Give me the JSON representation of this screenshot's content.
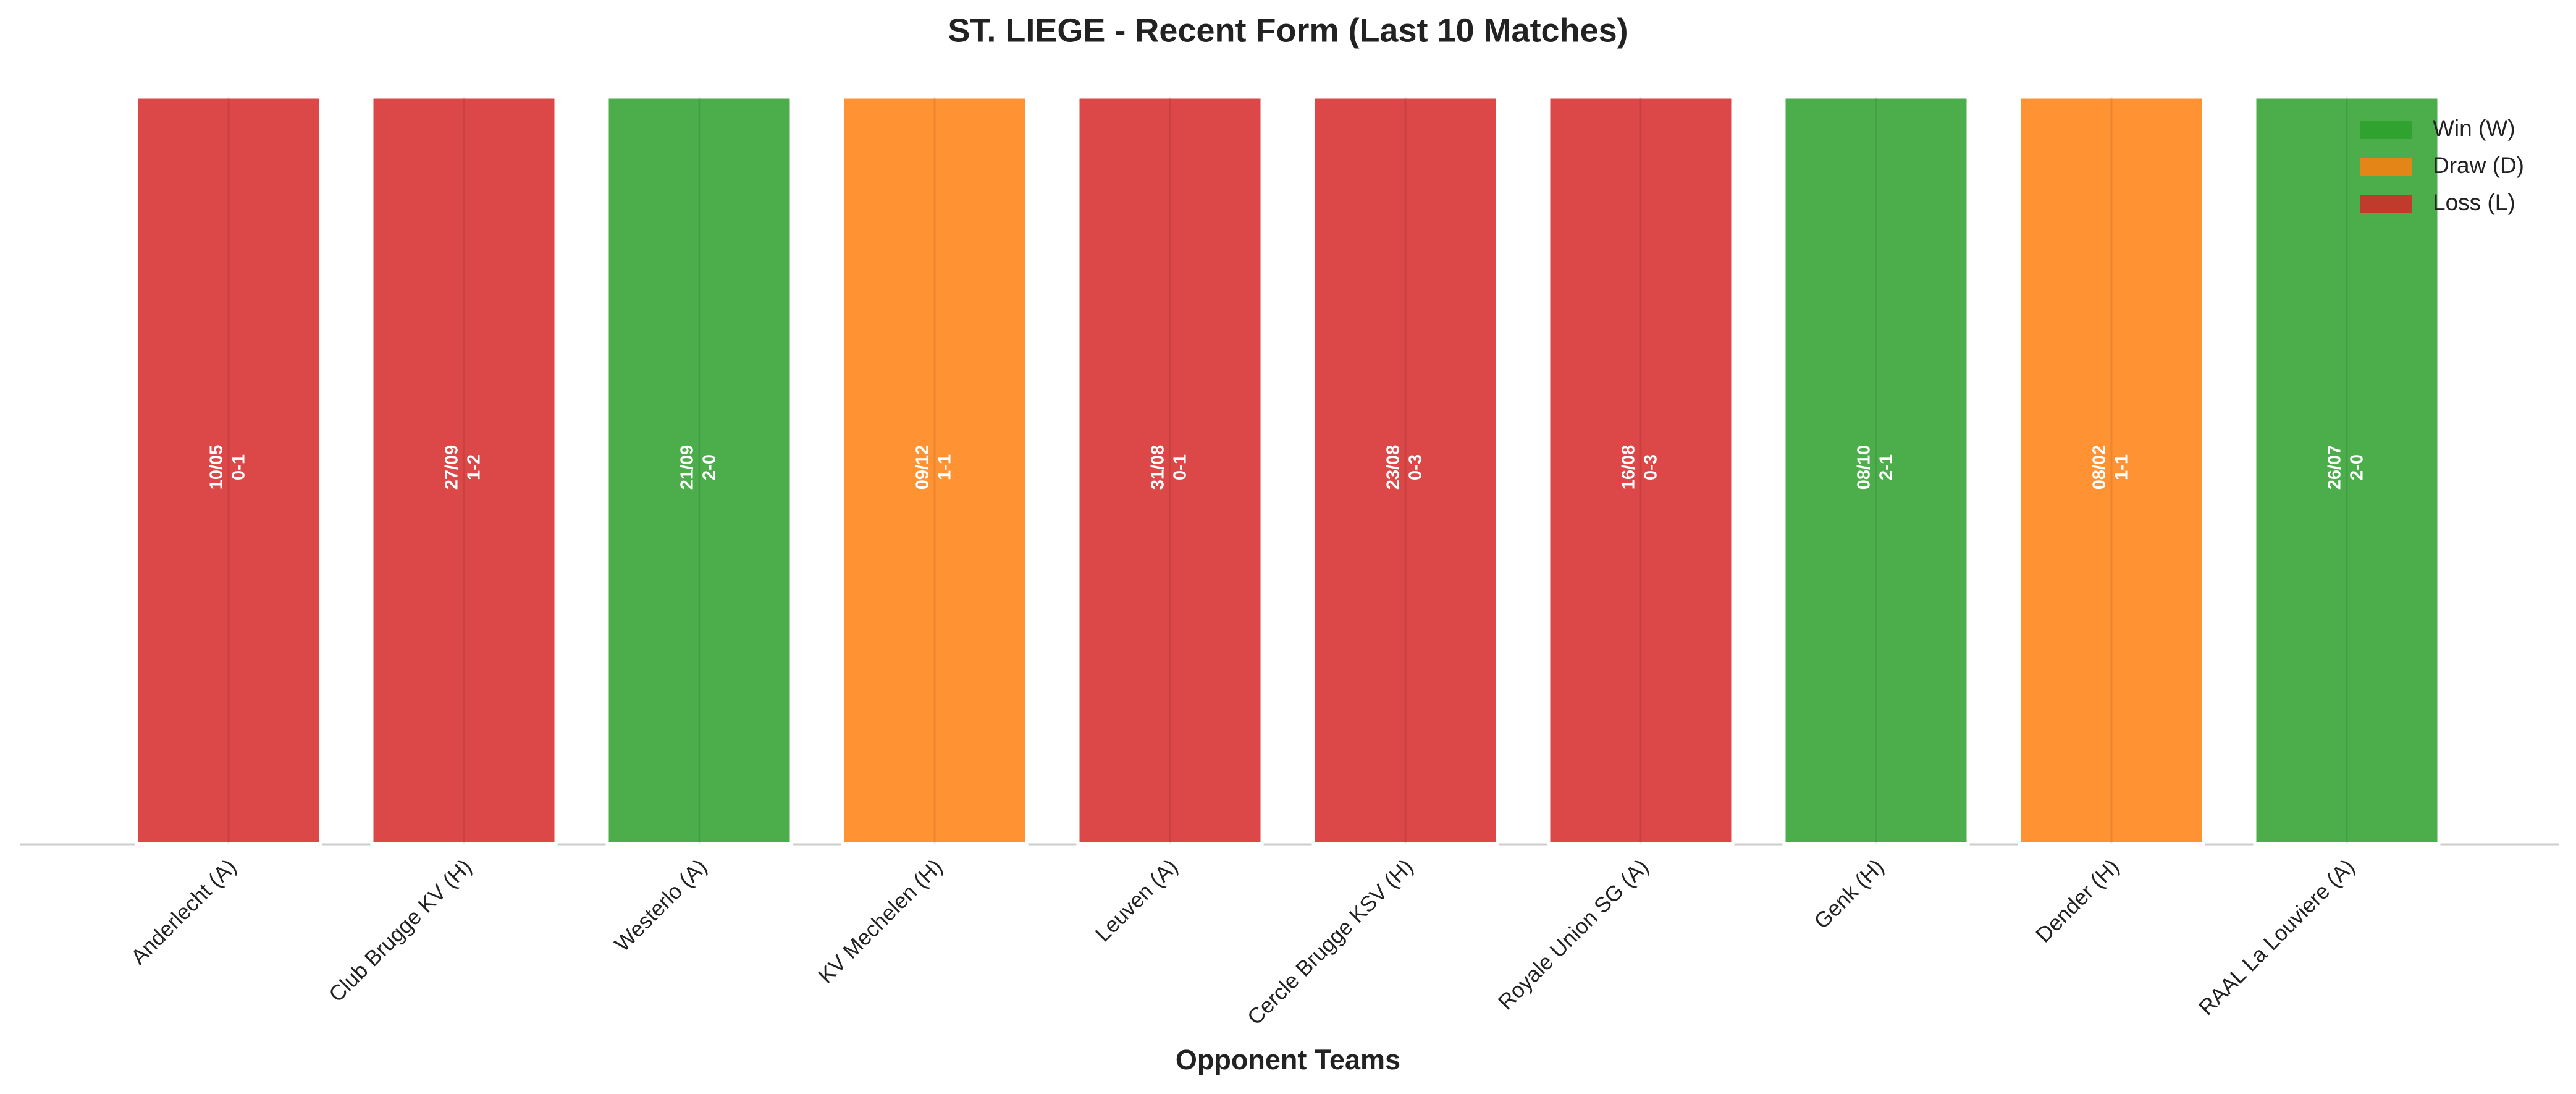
{
  "chart_data": {
    "type": "bar",
    "title": "ST. LIEGE - Recent Form (Last 10 Matches)",
    "xlabel": "Opponent Teams",
    "categories": [
      "Anderlecht (A)",
      "Club Brugge KV (H)",
      "Westerlo (A)",
      "KV Mechelen (H)",
      "Leuven (A)",
      "Cercle Brugge KSV (H)",
      "Royale Union SG (A)",
      "Genk (H)",
      "Dender (H)",
      "RAAL La Louviere (A)"
    ],
    "values": [
      1,
      1,
      1,
      1,
      1,
      1,
      1,
      1,
      1,
      1
    ],
    "dates": [
      "10/05",
      "27/09",
      "21/09",
      "09/12",
      "31/08",
      "23/08",
      "16/08",
      "08/10",
      "08/02",
      "26/07"
    ],
    "scores": [
      "0-1",
      "1-2",
      "2-0",
      "1-1",
      "0-1",
      "0-3",
      "0-3",
      "2-1",
      "1-1",
      "2-0"
    ],
    "colors": [
      "#d62728",
      "#d62728",
      "#2ca02c",
      "#ff7f0e",
      "#d62728",
      "#d62728",
      "#d62728",
      "#2ca02c",
      "#ff7f0e",
      "#2ca02c"
    ],
    "ylim": [
      0,
      1
    ],
    "legend": [
      {
        "name": "Win (W)",
        "color": "#2ca02c"
      },
      {
        "name": "Draw (D)",
        "color": "#ff7f0e"
      },
      {
        "name": "Loss (L)",
        "color": "#d62728"
      }
    ],
    "legend_position": "upper right"
  }
}
